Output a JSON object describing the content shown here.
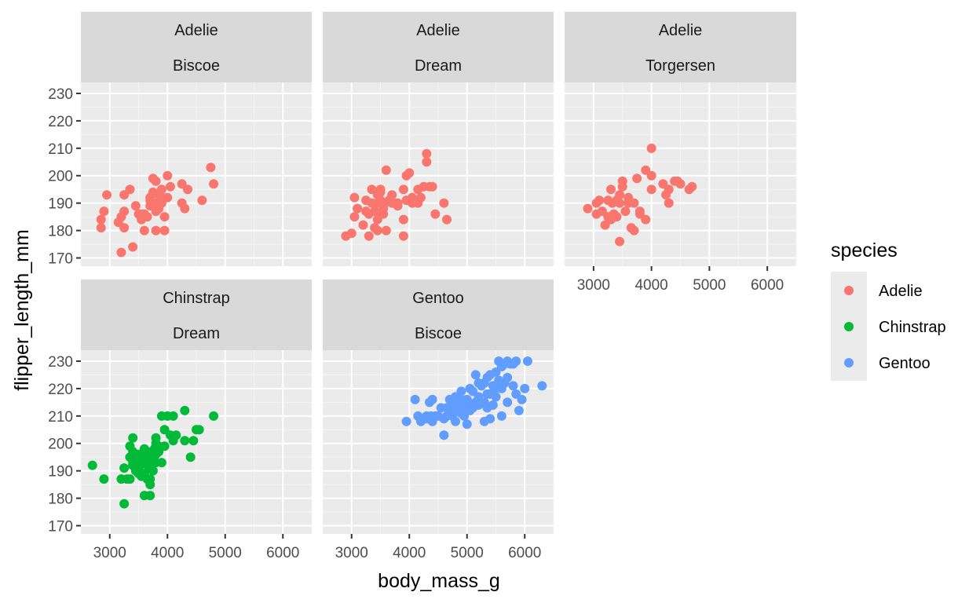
{
  "chart_data": {
    "type": "scatter",
    "xlabel": "body_mass_g",
    "ylabel": "flipper_length_mm",
    "xlim": [
      2500,
      6500
    ],
    "ylim": [
      167,
      234
    ],
    "x_ticks": [
      3000,
      4000,
      5000,
      6000
    ],
    "y_ticks": [
      170,
      180,
      190,
      200,
      210,
      220,
      230
    ],
    "x_tick_labels": [
      "3000",
      "4000",
      "5000",
      "6000"
    ],
    "y_tick_labels": [
      "170",
      "180",
      "190",
      "200",
      "210",
      "220",
      "230"
    ],
    "grid": true,
    "legend": {
      "title": "species",
      "position": "right",
      "entries": [
        {
          "label": "Adelie",
          "color": "#F8766D"
        },
        {
          "label": "Chinstrap",
          "color": "#00BA38"
        },
        {
          "label": "Gentoo",
          "color": "#619CFF"
        }
      ]
    },
    "panels": [
      {
        "species": "Adelie",
        "island": "Biscoe",
        "color": "#F8766D",
        "points": [
          [
            2850,
            181
          ],
          [
            2850,
            184
          ],
          [
            2900,
            187
          ],
          [
            2950,
            193
          ],
          [
            3150,
            183
          ],
          [
            3200,
            172
          ],
          [
            3200,
            185
          ],
          [
            3250,
            181
          ],
          [
            3250,
            187
          ],
          [
            3250,
            193
          ],
          [
            3350,
            195
          ],
          [
            3400,
            174
          ],
          [
            3450,
            189
          ],
          [
            3500,
            186
          ],
          [
            3550,
            184
          ],
          [
            3550,
            186
          ],
          [
            3600,
            180
          ],
          [
            3600,
            186
          ],
          [
            3650,
            185
          ],
          [
            3700,
            189
          ],
          [
            3700,
            191
          ],
          [
            3750,
            199
          ],
          [
            3750,
            194
          ],
          [
            3800,
            180
          ],
          [
            3800,
            187
          ],
          [
            3800,
            190
          ],
          [
            3800,
            198
          ],
          [
            3850,
            193
          ],
          [
            3850,
            188
          ],
          [
            3900,
            195
          ],
          [
            3900,
            192
          ],
          [
            3950,
            185
          ],
          [
            3950,
            180
          ],
          [
            4000,
            200
          ],
          [
            4000,
            192
          ],
          [
            4050,
            196
          ],
          [
            4250,
            197
          ],
          [
            4250,
            190
          ],
          [
            4300,
            188
          ],
          [
            4350,
            195
          ],
          [
            4600,
            191
          ],
          [
            4750,
            203
          ],
          [
            4800,
            197
          ],
          [
            3700,
            192
          ],
          [
            3900,
            190
          ]
        ]
      },
      {
        "species": "Adelie",
        "island": "Dream",
        "color": "#F8766D",
        "points": [
          [
            2900,
            178
          ],
          [
            3000,
            179
          ],
          [
            3050,
            185
          ],
          [
            3050,
            192
          ],
          [
            3100,
            188
          ],
          [
            3100,
            188
          ],
          [
            3200,
            182
          ],
          [
            3250,
            191
          ],
          [
            3300,
            178
          ],
          [
            3300,
            186
          ],
          [
            3350,
            190
          ],
          [
            3350,
            195
          ],
          [
            3400,
            181
          ],
          [
            3400,
            187
          ],
          [
            3450,
            193
          ],
          [
            3450,
            190
          ],
          [
            3450,
            184
          ],
          [
            3450,
            180
          ],
          [
            3500,
            195
          ],
          [
            3500,
            191
          ],
          [
            3500,
            186
          ],
          [
            3500,
            194
          ],
          [
            3550,
            189
          ],
          [
            3550,
            186
          ],
          [
            3600,
            180
          ],
          [
            3600,
            202
          ],
          [
            3700,
            193
          ],
          [
            3700,
            190
          ],
          [
            3750,
            190
          ],
          [
            3800,
            190
          ],
          [
            3800,
            189
          ],
          [
            3900,
            195
          ],
          [
            3900,
            184
          ],
          [
            3900,
            178
          ],
          [
            3950,
            200
          ],
          [
            4000,
            201
          ],
          [
            4050,
            190
          ],
          [
            4050,
            192
          ],
          [
            4100,
            191
          ],
          [
            4150,
            195
          ],
          [
            4150,
            190
          ],
          [
            4200,
            192
          ],
          [
            4250,
            196
          ],
          [
            4300,
            208
          ],
          [
            4300,
            205
          ],
          [
            4350,
            196
          ],
          [
            4400,
            196
          ],
          [
            4450,
            186
          ],
          [
            4600,
            190
          ],
          [
            4650,
            184
          ],
          [
            3650,
            191
          ],
          [
            3550,
            188
          ],
          [
            3250,
            187
          ],
          [
            3950,
            191
          ]
        ]
      },
      {
        "species": "Adelie",
        "island": "Torgersen",
        "color": "#F8766D",
        "points": [
          [
            2900,
            188
          ],
          [
            3050,
            186
          ],
          [
            3050,
            190
          ],
          [
            3100,
            191
          ],
          [
            3150,
            187
          ],
          [
            3200,
            182
          ],
          [
            3250,
            185
          ],
          [
            3250,
            191
          ],
          [
            3300,
            195
          ],
          [
            3300,
            184
          ],
          [
            3325,
            190
          ],
          [
            3350,
            186
          ],
          [
            3400,
            185
          ],
          [
            3450,
            176
          ],
          [
            3450,
            190
          ],
          [
            3450,
            193
          ],
          [
            3500,
            196
          ],
          [
            3500,
            198
          ],
          [
            3550,
            187
          ],
          [
            3600,
            190
          ],
          [
            3650,
            181
          ],
          [
            3700,
            180
          ],
          [
            3700,
            190
          ],
          [
            3750,
            199
          ],
          [
            3800,
            186
          ],
          [
            3800,
            187
          ],
          [
            3900,
            184
          ],
          [
            3900,
            202
          ],
          [
            4000,
            210
          ],
          [
            4000,
            195
          ],
          [
            4000,
            200
          ],
          [
            4200,
            197
          ],
          [
            4250,
            193
          ],
          [
            4300,
            190
          ],
          [
            4300,
            195
          ],
          [
            4400,
            198
          ],
          [
            4450,
            198
          ],
          [
            4500,
            197
          ],
          [
            4650,
            195
          ],
          [
            4700,
            196
          ],
          [
            3400,
            191
          ],
          [
            3600,
            192
          ]
        ]
      },
      {
        "species": "Chinstrap",
        "island": "Dream",
        "color": "#00BA38",
        "points": [
          [
            2700,
            192
          ],
          [
            2900,
            187
          ],
          [
            3200,
            187
          ],
          [
            3250,
            178
          ],
          [
            3250,
            191
          ],
          [
            3300,
            187
          ],
          [
            3350,
            199
          ],
          [
            3350,
            195
          ],
          [
            3350,
            187
          ],
          [
            3400,
            192
          ],
          [
            3400,
            197
          ],
          [
            3400,
            202
          ],
          [
            3450,
            195
          ],
          [
            3450,
            190
          ],
          [
            3500,
            189
          ],
          [
            3500,
            196
          ],
          [
            3525,
            192
          ],
          [
            3550,
            188
          ],
          [
            3600,
            181
          ],
          [
            3600,
            198
          ],
          [
            3600,
            194
          ],
          [
            3650,
            193
          ],
          [
            3650,
            195
          ],
          [
            3650,
            187
          ],
          [
            3675,
            191
          ],
          [
            3700,
            181
          ],
          [
            3700,
            185
          ],
          [
            3700,
            196
          ],
          [
            3700,
            187
          ],
          [
            3725,
            193
          ],
          [
            3750,
            190
          ],
          [
            3775,
            198
          ],
          [
            3800,
            200
          ],
          [
            3800,
            196
          ],
          [
            3800,
            202
          ],
          [
            3800,
            193
          ],
          [
            3850,
            199
          ],
          [
            3850,
            197
          ],
          [
            3900,
            193
          ],
          [
            3900,
            210
          ],
          [
            3950,
            205
          ],
          [
            3950,
            199
          ],
          [
            4000,
            210
          ],
          [
            4050,
            203
          ],
          [
            4100,
            201
          ],
          [
            4100,
            210
          ],
          [
            4150,
            203
          ],
          [
            4300,
            212
          ],
          [
            4300,
            201
          ],
          [
            4400,
            195
          ],
          [
            4450,
            201
          ],
          [
            4500,
            205
          ],
          [
            4550,
            205
          ],
          [
            4800,
            210
          ],
          [
            3550,
            194
          ],
          [
            3500,
            191
          ],
          [
            3400,
            193
          ],
          [
            3650,
            197
          ],
          [
            3750,
            196
          ],
          [
            3450,
            194
          ],
          [
            3600,
            189
          ],
          [
            3700,
            192
          ]
        ]
      },
      {
        "species": "Gentoo",
        "island": "Biscoe",
        "color": "#619CFF",
        "points": [
          [
            3950,
            208
          ],
          [
            4100,
            216
          ],
          [
            4150,
            210
          ],
          [
            4200,
            208
          ],
          [
            4300,
            209
          ],
          [
            4300,
            210
          ],
          [
            4350,
            215
          ],
          [
            4375,
            210
          ],
          [
            4400,
            208
          ],
          [
            4400,
            216
          ],
          [
            4450,
            210
          ],
          [
            4500,
            210
          ],
          [
            4550,
            213
          ],
          [
            4600,
            203
          ],
          [
            4600,
            209
          ],
          [
            4650,
            210
          ],
          [
            4650,
            213
          ],
          [
            4700,
            216
          ],
          [
            4700,
            212
          ],
          [
            4750,
            214
          ],
          [
            4750,
            210
          ],
          [
            4800,
            217
          ],
          [
            4800,
            208
          ],
          [
            4850,
            212
          ],
          [
            4850,
            214
          ],
          [
            4875,
            215
          ],
          [
            4900,
            216
          ],
          [
            4900,
            211
          ],
          [
            4925,
            212
          ],
          [
            4950,
            210
          ],
          [
            5000,
            216
          ],
          [
            5000,
            207
          ],
          [
            5000,
            214
          ],
          [
            5050,
            220
          ],
          [
            5050,
            212
          ],
          [
            5100,
            219
          ],
          [
            5100,
            213
          ],
          [
            5150,
            215
          ],
          [
            5200,
            217
          ],
          [
            5200,
            222
          ],
          [
            5250,
            221
          ],
          [
            5300,
            215
          ],
          [
            5300,
            222
          ],
          [
            5350,
            213
          ],
          [
            5350,
            224
          ],
          [
            5400,
            218
          ],
          [
            5400,
            225
          ],
          [
            5450,
            214
          ],
          [
            5500,
            220
          ],
          [
            5500,
            226
          ],
          [
            5550,
            223
          ],
          [
            5600,
            228
          ],
          [
            5600,
            210
          ],
          [
            5650,
            222
          ],
          [
            5700,
            215
          ],
          [
            5700,
            230
          ],
          [
            5750,
            229
          ],
          [
            5800,
            221
          ],
          [
            5850,
            230
          ],
          [
            5850,
            218
          ],
          [
            5950,
            216
          ],
          [
            6000,
            220
          ],
          [
            6050,
            230
          ],
          [
            6300,
            221
          ],
          [
            5300,
            208
          ],
          [
            5400,
            209
          ],
          [
            5600,
            220
          ],
          [
            5500,
            217
          ],
          [
            5700,
            224
          ],
          [
            5900,
            212
          ],
          [
            5650,
            229
          ],
          [
            5450,
            221
          ],
          [
            5150,
            225
          ],
          [
            5200,
            214
          ],
          [
            5000,
            216
          ],
          [
            4900,
            219
          ],
          [
            5800,
            229
          ],
          [
            5550,
            230
          ],
          [
            5350,
            218
          ]
        ]
      }
    ]
  }
}
